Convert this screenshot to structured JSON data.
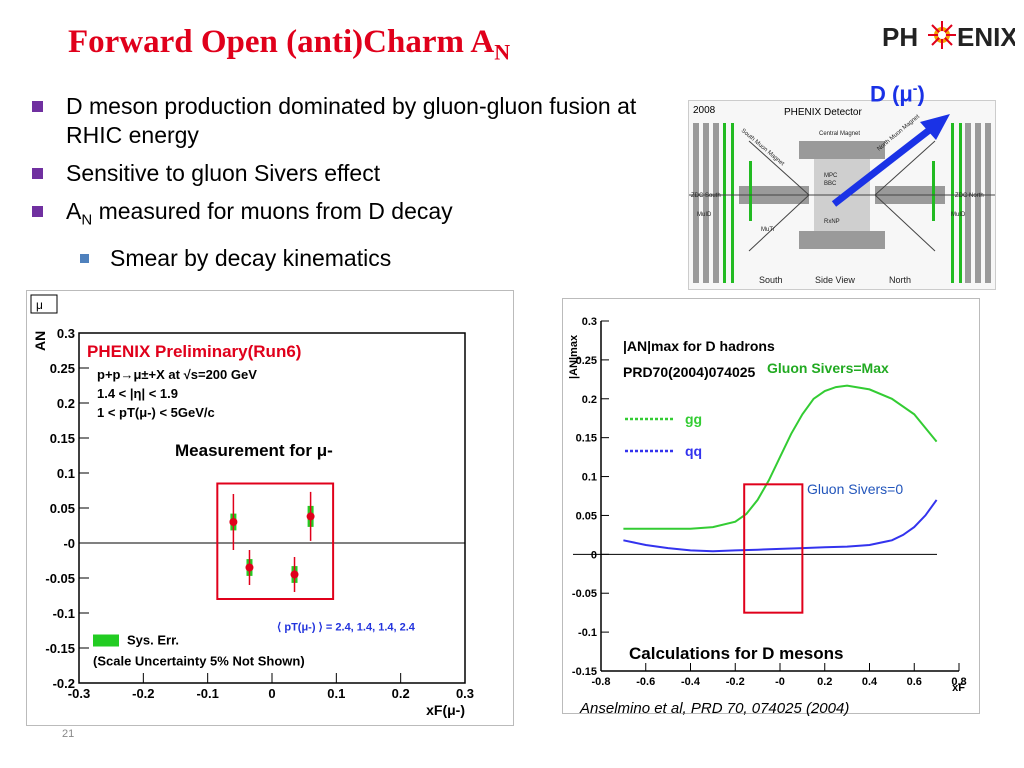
{
  "slide": {
    "title": "Forward Open (anti)Charm A",
    "title_sub": "N",
    "logo_left": "PH",
    "logo_right": "ENIX",
    "slide_number": "21",
    "citation": "Anselmino et al, PRD 70, 074025 (2004)"
  },
  "bullets": [
    {
      "text": "D meson production dominated by gluon-gluon fusion at RHIC energy",
      "level": 1
    },
    {
      "text": "Sensitive to gluon Sivers effect",
      "level": 1
    },
    {
      "text_pre": "A",
      "text_sub": "N",
      "text_post": " measured for muons from D decay",
      "level": 1
    },
    {
      "text": "Smear by decay kinematics",
      "level": 2
    }
  ],
  "detector": {
    "year": "2008",
    "title": "PHENIX Detector",
    "labels": [
      "South Muon Magnet",
      "Central Magnet",
      "North Muon Magnet",
      "MPC",
      "BBC",
      "RxNP",
      "MuTr",
      "MuID",
      "MuID",
      "ZDC South",
      "ZDC North",
      "South",
      "Side View",
      "North"
    ],
    "arrow_label": "D (μ",
    "arrow_label_sup": "-",
    "arrow_label_close": ")",
    "arrow_color": "#1a32e6"
  },
  "chart_data": [
    {
      "type": "scatter",
      "title": "PHENIX Preliminary(Run6)",
      "legend_box_label": "μ",
      "legend_box_sup": "-",
      "info_lines": [
        "p+p→μ±+X at √s=200 GeV",
        "1.4 < |η| < 1.9",
        "1 < pT(μ-) < 5GeV/c"
      ],
      "annotation": "Measurement for μ",
      "annotation_sup": "-",
      "pt_note": "⟨ pT(μ-) ⟩ = 2.4, 1.4, 1.4, 2.4",
      "sys_err_label": "Sys. Err.",
      "scale_note": "(Scale Uncertainty 5% Not Shown)",
      "ylabel": "AN",
      "xlabel": "xF(μ-)",
      "xlim": [
        -0.3,
        0.3
      ],
      "ylim": [
        -0.2,
        0.3
      ],
      "xticks": [
        "-0.3",
        "-0.2",
        "-0.1",
        "0",
        "0.1",
        "0.2",
        "0.3"
      ],
      "yticks": [
        "0.3",
        "0.25",
        "0.2",
        "0.15",
        "0.1",
        "0.05",
        "-0",
        "-0.05",
        "-0.1",
        "-0.15",
        "-0.2"
      ],
      "points": [
        {
          "x": -0.06,
          "y": 0.03,
          "err": 0.04,
          "sys": 0.012
        },
        {
          "x": -0.035,
          "y": -0.035,
          "err": 0.025,
          "sys": 0.012
        },
        {
          "x": 0.035,
          "y": -0.045,
          "err": 0.025,
          "sys": 0.012
        },
        {
          "x": 0.06,
          "y": 0.038,
          "err": 0.035,
          "sys": 0.015
        }
      ],
      "point_color": "#e0001b",
      "sys_color": "#22cc22",
      "box_color": "#e0001b"
    },
    {
      "type": "line",
      "title": "|AN|max for D hadrons",
      "ref": "PRD70(2004)074025",
      "legend": [
        {
          "name": "gg",
          "color": "#33cc33"
        },
        {
          "name": "qq",
          "color": "#3333ee"
        }
      ],
      "annotation": "Calculations for D mesons",
      "ylabel": "|AN|max",
      "xlabel": "xF",
      "xlim": [
        -0.8,
        0.8
      ],
      "ylim": [
        -0.15,
        0.3
      ],
      "xticks": [
        "-0.8",
        "-0.6",
        "-0.4",
        "-0.2",
        "-0",
        "0.2",
        "0.4",
        "0.6",
        "0.8"
      ],
      "yticks": [
        "0.3",
        "0.25",
        "0.2",
        "0.15",
        "0.1",
        "0.05",
        "0",
        "-0.05",
        "-0.1",
        "-0.15"
      ],
      "series": [
        {
          "name": "Gluon Sivers=Max",
          "color": "#33cc33",
          "x": [
            -0.7,
            -0.6,
            -0.5,
            -0.4,
            -0.3,
            -0.2,
            -0.15,
            -0.1,
            -0.05,
            0,
            0.05,
            0.1,
            0.15,
            0.2,
            0.25,
            0.3,
            0.4,
            0.5,
            0.6,
            0.7
          ],
          "y": [
            0.033,
            0.033,
            0.033,
            0.033,
            0.035,
            0.042,
            0.052,
            0.07,
            0.095,
            0.125,
            0.155,
            0.18,
            0.2,
            0.21,
            0.215,
            0.217,
            0.212,
            0.2,
            0.18,
            0.145
          ]
        },
        {
          "name": "Gluon Sivers=0",
          "color": "#3333ee",
          "x": [
            -0.7,
            -0.6,
            -0.5,
            -0.4,
            -0.3,
            -0.2,
            -0.1,
            0,
            0.1,
            0.2,
            0.3,
            0.4,
            0.5,
            0.55,
            0.6,
            0.65,
            0.7
          ],
          "y": [
            0.018,
            0.012,
            0.008,
            0.005,
            0.004,
            0.005,
            0.006,
            0.007,
            0.008,
            0.009,
            0.01,
            0.012,
            0.018,
            0.025,
            0.035,
            0.05,
            0.07
          ]
        }
      ],
      "box_color": "#e0001b"
    }
  ]
}
